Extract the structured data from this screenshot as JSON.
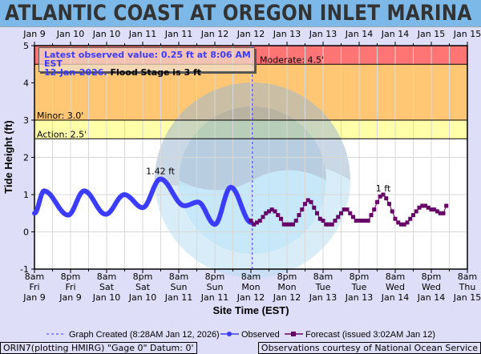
{
  "header": {
    "title": "ATLANTIC COAST AT OREGON INLET MARINA"
  },
  "info_box": {
    "line1": "Latest observed value: 0.25 ft at 8:06 AM EST",
    "line2_date": "12-Jan-2026.",
    "line2_flood": "Flood Stage is 3 ft"
  },
  "footer": {
    "left": "ORIN7(plotting HMIRG) \"Gage 0\" Datum: 0'",
    "right": "Observations courtesy of National Ocean Service"
  },
  "chart_data": {
    "type": "line",
    "xlabel": "Site Time (EST)",
    "ylabel": "Tide Height (ft)",
    "ylim": [
      -1,
      5
    ],
    "xlim": [
      "2026-01-09T08:00",
      "2026-01-15T08:00"
    ],
    "grid": true,
    "legend_placement": "bottom",
    "yticks": [
      "5",
      "4",
      "3",
      "2",
      "1",
      "0",
      "-1"
    ],
    "top_ticks": [
      "Jan 9",
      "Jan 10",
      "Jan 10",
      "Jan 11",
      "Jan 11",
      "Jan 12",
      "Jan 12",
      "Jan 13",
      "Jan 13",
      "Jan 14",
      "Jan 14",
      "Jan 15",
      "Jan 15"
    ],
    "bottom_ticks": [
      [
        "8am",
        "Fri",
        "Jan 9"
      ],
      [
        "8pm",
        "Fri",
        "Jan 9"
      ],
      [
        "8am",
        "Sat",
        "Jan 10"
      ],
      [
        "8pm",
        "Sat",
        "Jan 10"
      ],
      [
        "8am",
        "Sun",
        "Jan 11"
      ],
      [
        "8pm",
        "Sun",
        "Jan 11"
      ],
      [
        "8am",
        "Mon",
        "Jan 12"
      ],
      [
        "8pm",
        "Mon",
        "Jan 12"
      ],
      [
        "8am",
        "Tue",
        "Jan 13"
      ],
      [
        "8pm",
        "Tue",
        "Jan 13"
      ],
      [
        "8am",
        "Wed",
        "Jan 14"
      ],
      [
        "8pm",
        "Wed",
        "Jan 14"
      ],
      [
        "8am",
        "Thu",
        "Jan 15"
      ]
    ],
    "flood_categories": [
      {
        "name": "Major",
        "from": 4.5,
        "to": 5,
        "color": "#ff7575"
      },
      {
        "name": "Moderate",
        "label": "Moderate: 4.5'",
        "from": 3,
        "to": 4.5,
        "color": "#ffc673"
      },
      {
        "name": "Minor",
        "label": "Minor: 3.0'",
        "from": 2.5,
        "to": 3,
        "color": "#ffffaa"
      },
      {
        "name": "Action",
        "label": "Action: 2.5'",
        "from": -1,
        "to": 2.5,
        "color": "#ffffff"
      }
    ],
    "graph_created": "2026-01-12T08:28",
    "series": [
      {
        "name": "Observed",
        "color": "#3c3cff",
        "annotation": "1.42 ft",
        "annotation_at": "2026-01-11T01:54",
        "points": [
          [
            "2026-01-09T08:00",
            0.5
          ],
          [
            "2026-01-09T11:12",
            1.1
          ],
          [
            "2026-01-09T19:12",
            0.45
          ],
          [
            "2026-01-10T00:30",
            1.1
          ],
          [
            "2026-01-10T07:42",
            0.47
          ],
          [
            "2026-01-10T13:54",
            1.0
          ],
          [
            "2026-01-10T20:00",
            0.65
          ],
          [
            "2026-01-11T01:54",
            1.42
          ],
          [
            "2026-01-11T09:54",
            0.7
          ],
          [
            "2026-01-11T14:24",
            0.8
          ],
          [
            "2026-01-11T20:00",
            0.2
          ],
          [
            "2026-01-12T01:18",
            1.2
          ],
          [
            "2026-01-12T08:06",
            0.25
          ]
        ]
      },
      {
        "name": "Forecast (issued 3:02AM Jan 12)",
        "color": "#660066",
        "annotation": "1 ft",
        "annotation_at": "2026-01-14T04:00",
        "start": "2026-01-12T08:00",
        "interval_hours": 1,
        "values": [
          0.3,
          0.2,
          0.25,
          0.3,
          0.4,
          0.5,
          0.55,
          0.6,
          0.55,
          0.45,
          0.35,
          0.2,
          0.2,
          0.2,
          0.2,
          0.3,
          0.45,
          0.6,
          0.75,
          0.85,
          0.8,
          0.65,
          0.5,
          0.35,
          0.3,
          0.2,
          0.2,
          0.2,
          0.3,
          0.4,
          0.5,
          0.6,
          0.6,
          0.5,
          0.4,
          0.3,
          0.3,
          0.3,
          0.3,
          0.3,
          0.45,
          0.6,
          0.8,
          0.95,
          1.0,
          0.9,
          0.75,
          0.55,
          0.35,
          0.25,
          0.2,
          0.2,
          0.25,
          0.35,
          0.45,
          0.55,
          0.65,
          0.7,
          0.7,
          0.65,
          0.6,
          0.6,
          0.55,
          0.5,
          0.5,
          0.7
        ]
      }
    ],
    "legend": {
      "created": "Graph Created (8:28AM Jan 12, 2026)",
      "observed": "Observed",
      "forecast": "Forecast (issued 3:02AM Jan 12)"
    }
  }
}
